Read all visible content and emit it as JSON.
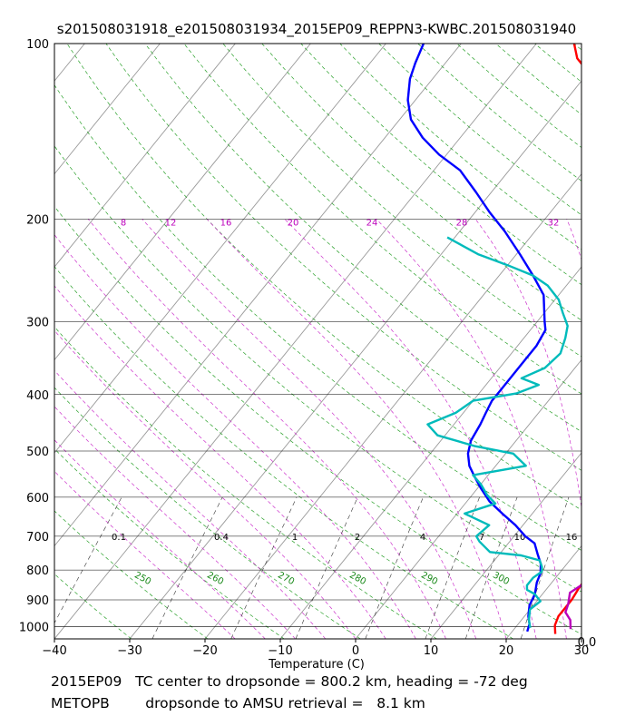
{
  "chart_data": {
    "type": "line",
    "diagram": "skew-T log-P",
    "title": "s201508031918_e201508031934_2015EP09_REPPN3-KWBC.201508031940",
    "xlabel": "Temperature (C)",
    "ylabel": "Pressure (hPa)",
    "xlim": [
      -40,
      30
    ],
    "plim": [
      1050,
      100
    ],
    "x_ticks": [
      "−40",
      "−30",
      "−20",
      "−10",
      "0",
      "10",
      "20",
      "30"
    ],
    "x_tick_values": [
      -40,
      -30,
      -20,
      -10,
      0,
      10,
      20,
      30
    ],
    "p_ticks": [
      "100",
      "200",
      "300",
      "400",
      "500",
      "600",
      "700",
      "800",
      "900",
      "1000"
    ],
    "p_tick_values": [
      100,
      200,
      300,
      400,
      500,
      600,
      700,
      800,
      900,
      1000
    ],
    "mixing_ratio_labels": [
      "0.1",
      "0.4",
      "1",
      "2",
      "4",
      "7",
      "10",
      "16"
    ],
    "mixing_ratio_values": [
      0.1,
      0.4,
      1,
      2,
      4,
      7,
      10,
      16
    ],
    "theta_labels": [
      "250",
      "260",
      "270",
      "280",
      "290",
      "300"
    ],
    "theta_values": [
      250,
      260,
      270,
      280,
      290,
      300
    ],
    "theta_e_labels": [
      "8",
      "12",
      "16",
      "20",
      "24",
      "28",
      "32"
    ],
    "theta_e_values": [
      8,
      12,
      16,
      20,
      24,
      28,
      32
    ],
    "corner_label": "0.0",
    "series": [
      {
        "name": "temperature",
        "color": "#ff0000",
        "points": [
          [
            26,
            1030
          ],
          [
            25,
            995
          ],
          [
            24.5,
            960
          ],
          [
            24.5,
            900
          ],
          [
            24.2,
            860
          ],
          [
            24,
            810
          ],
          [
            23.5,
            770
          ],
          [
            23,
            735
          ],
          [
            22.5,
            700
          ],
          [
            22,
            660
          ],
          [
            21.5,
            620
          ],
          [
            21,
            590
          ],
          [
            20.5,
            560
          ],
          [
            20,
            530
          ],
          [
            19,
            500
          ],
          [
            18,
            470
          ],
          [
            17,
            440
          ],
          [
            15.5,
            410
          ],
          [
            14,
            380
          ],
          [
            12,
            350
          ],
          [
            10.5,
            320
          ],
          [
            8.5,
            290
          ],
          [
            6,
            260
          ],
          [
            3.5,
            235
          ],
          [
            1,
            215
          ],
          [
            -1.5,
            200
          ],
          [
            -4,
            185
          ],
          [
            -7,
            170
          ],
          [
            -10.5,
            155
          ],
          [
            -14,
            145
          ],
          [
            -18,
            135
          ],
          [
            -23,
            125
          ],
          [
            -27,
            118
          ],
          [
            -30,
            112
          ],
          [
            -33,
            106
          ],
          [
            -35,
            100
          ]
        ]
      },
      {
        "name": "dewpoint",
        "color": "#0000ff",
        "points": [
          [
            22,
            1020
          ],
          [
            21.5,
            990
          ],
          [
            20.5,
            960
          ],
          [
            19.5,
            920
          ],
          [
            19,
            880
          ],
          [
            18,
            840
          ],
          [
            17.5,
            810
          ],
          [
            16.5,
            780
          ],
          [
            15,
            750
          ],
          [
            13.5,
            720
          ],
          [
            11.5,
            700
          ],
          [
            9,
            670
          ],
          [
            6,
            640
          ],
          [
            3,
            610
          ],
          [
            0.5,
            580
          ],
          [
            -1.5,
            555
          ],
          [
            -3.5,
            530
          ],
          [
            -5,
            505
          ],
          [
            -6,
            480
          ],
          [
            -6.5,
            450
          ],
          [
            -7,
            430
          ],
          [
            -7.5,
            410
          ],
          [
            -7.5,
            390
          ],
          [
            -7.5,
            370
          ],
          [
            -7.5,
            350
          ],
          [
            -7.5,
            330
          ],
          [
            -8,
            310
          ],
          [
            -9,
            300
          ],
          [
            -12,
            270
          ],
          [
            -15.5,
            250
          ],
          [
            -19.5,
            230
          ],
          [
            -24,
            210
          ],
          [
            -28,
            195
          ],
          [
            -32,
            180
          ],
          [
            -36.5,
            165
          ],
          [
            -41,
            155
          ],
          [
            -45,
            145
          ],
          [
            -48.5,
            135
          ],
          [
            -51,
            125
          ],
          [
            -53,
            115
          ],
          [
            -54,
            108
          ],
          [
            -55,
            100
          ]
        ]
      },
      {
        "name": "amsu_temperature",
        "color": "#bb00bb",
        "points": [
          [
            27.5,
            1010
          ],
          [
            26.5,
            975
          ],
          [
            25,
            945
          ],
          [
            24.5,
            915
          ],
          [
            23.5,
            875
          ],
          [
            24.5,
            840
          ],
          [
            24.5,
            810
          ],
          [
            23.5,
            790
          ],
          [
            23.5,
            770
          ],
          [
            24,
            740
          ],
          [
            24,
            705
          ],
          [
            23.5,
            680
          ],
          [
            23.5,
            650
          ],
          [
            22.5,
            630
          ],
          [
            21.5,
            600
          ],
          [
            21,
            580
          ],
          [
            20,
            560
          ],
          [
            19,
            540
          ],
          [
            18.8,
            515
          ],
          [
            18,
            485
          ],
          [
            17,
            455
          ],
          [
            15.5,
            425
          ],
          [
            13.5,
            395
          ],
          [
            12,
            370
          ],
          [
            10,
            345
          ],
          [
            8,
            315
          ],
          [
            5.5,
            285
          ],
          [
            3,
            260
          ],
          [
            0.5,
            235
          ],
          [
            -2,
            215
          ],
          [
            -3.5,
            200
          ],
          [
            -5,
            185
          ],
          [
            -6,
            175
          ],
          [
            -9,
            165
          ]
        ]
      },
      {
        "name": "amsu_dewpoint",
        "color": "#00bbbb",
        "points": [
          [
            22,
            1005
          ],
          [
            21,
            975
          ],
          [
            20.5,
            955
          ],
          [
            20,
            935
          ],
          [
            20.5,
            905
          ],
          [
            19,
            880
          ],
          [
            17.5,
            865
          ],
          [
            17,
            850
          ],
          [
            17,
            825
          ],
          [
            17.5,
            805
          ],
          [
            17,
            790
          ],
          [
            16,
            770
          ],
          [
            13,
            755
          ],
          [
            8.5,
            745
          ],
          [
            6,
            715
          ],
          [
            5,
            700
          ],
          [
            5.5,
            670
          ],
          [
            1,
            640
          ],
          [
            4,
            615
          ],
          [
            2,
            595
          ],
          [
            0,
            570
          ],
          [
            -2,
            550
          ],
          [
            4,
            530
          ],
          [
            1,
            505
          ],
          [
            -5,
            490
          ],
          [
            -11,
            470
          ],
          [
            -13.5,
            450
          ],
          [
            -11,
            430
          ],
          [
            -10,
            410
          ],
          [
            -5,
            398
          ],
          [
            -3,
            385
          ],
          [
            -6,
            375
          ],
          [
            -4,
            360
          ],
          [
            -3.5,
            340
          ],
          [
            -4.5,
            320
          ],
          [
            -5.5,
            305
          ],
          [
            -7.5,
            290
          ],
          [
            -9.5,
            275
          ],
          [
            -12.5,
            260
          ],
          [
            -15.5,
            250
          ],
          [
            -20,
            240
          ],
          [
            -25,
            230
          ],
          [
            -31,
            215
          ]
        ]
      }
    ]
  },
  "footer": {
    "line1": "2015EP09   TC center to dropsonde = 800.2 km, heading = -72 deg",
    "line2": "METOPB        dropsonde to AMSU retrieval =   8.1 km"
  }
}
